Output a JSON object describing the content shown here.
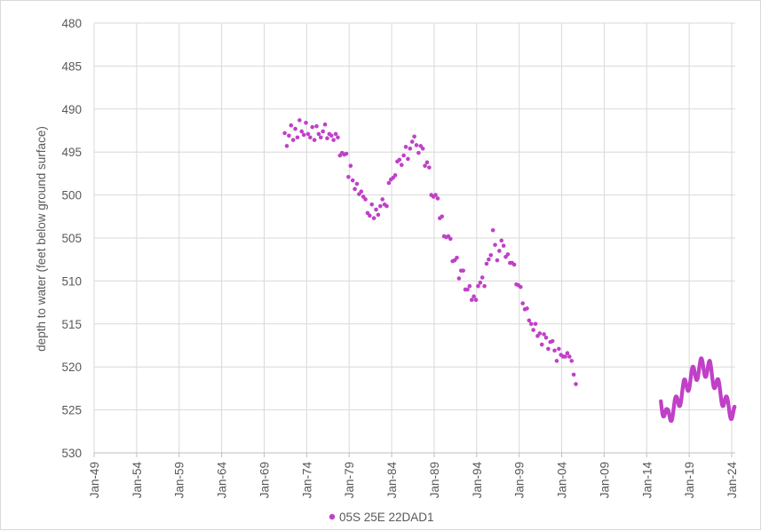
{
  "chart_data": {
    "type": "scatter",
    "title": "",
    "xlabel": "",
    "ylabel": "depth to water (feet below ground surface)",
    "y_axis_reversed": true,
    "ylim": [
      480,
      530
    ],
    "y_ticks": [
      480,
      485,
      490,
      495,
      500,
      505,
      510,
      515,
      520,
      525,
      530
    ],
    "xlim": [
      "1949-01",
      "2024-06"
    ],
    "x_tick_labels": [
      "Jan-49",
      "Jan-54",
      "Jan-59",
      "Jan-64",
      "Jan-69",
      "Jan-74",
      "Jan-79",
      "Jan-84",
      "Jan-89",
      "Jan-94",
      "Jan-99",
      "Jan-04",
      "Jan-09",
      "Jan-14",
      "Jan-19",
      "Jan-24"
    ],
    "x_ticks": [
      "1949-01",
      "1954-01",
      "1959-01",
      "1964-01",
      "1969-01",
      "1974-01",
      "1979-01",
      "1984-01",
      "1989-01",
      "1994-01",
      "1999-01",
      "2004-01",
      "2009-01",
      "2014-01",
      "2019-01",
      "2024-01"
    ],
    "grid": true,
    "legend_position": "bottom",
    "marker_color": "#c040c8",
    "series": [
      {
        "name": "05S 25E 22DAD1",
        "points": [
          [
            "1971-06",
            492.8
          ],
          [
            "1971-09",
            494.3
          ],
          [
            "1971-12",
            493.1
          ],
          [
            "1972-03",
            491.9
          ],
          [
            "1972-06",
            493.6
          ],
          [
            "1972-09",
            492.3
          ],
          [
            "1972-12",
            493.3
          ],
          [
            "1973-03",
            491.3
          ],
          [
            "1973-06",
            492.6
          ],
          [
            "1973-09",
            493.0
          ],
          [
            "1973-12",
            491.6
          ],
          [
            "1974-03",
            492.9
          ],
          [
            "1974-06",
            493.3
          ],
          [
            "1974-09",
            492.1
          ],
          [
            "1974-12",
            493.6
          ],
          [
            "1975-03",
            492.0
          ],
          [
            "1975-06",
            492.9
          ],
          [
            "1975-09",
            493.3
          ],
          [
            "1975-12",
            492.6
          ],
          [
            "1976-03",
            491.8
          ],
          [
            "1976-06",
            493.4
          ],
          [
            "1976-09",
            492.9
          ],
          [
            "1976-12",
            493.1
          ],
          [
            "1977-03",
            493.6
          ],
          [
            "1977-06",
            492.9
          ],
          [
            "1977-09",
            493.3
          ],
          [
            "1977-12",
            495.4
          ],
          [
            "1978-03",
            495.1
          ],
          [
            "1978-06",
            495.3
          ],
          [
            "1978-09",
            495.2
          ],
          [
            "1978-12",
            497.9
          ],
          [
            "1979-03",
            496.6
          ],
          [
            "1979-06",
            498.3
          ],
          [
            "1979-09",
            499.3
          ],
          [
            "1979-12",
            498.7
          ],
          [
            "1980-03",
            499.9
          ],
          [
            "1980-06",
            499.6
          ],
          [
            "1980-09",
            500.2
          ],
          [
            "1980-12",
            500.5
          ],
          [
            "1981-03",
            502.1
          ],
          [
            "1981-06",
            502.4
          ],
          [
            "1981-09",
            501.1
          ],
          [
            "1981-12",
            502.7
          ],
          [
            "1982-03",
            501.7
          ],
          [
            "1982-06",
            502.3
          ],
          [
            "1982-09",
            501.3
          ],
          [
            "1982-12",
            500.5
          ],
          [
            "1983-03",
            501.1
          ],
          [
            "1983-06",
            501.3
          ],
          [
            "1983-09",
            498.6
          ],
          [
            "1983-12",
            498.2
          ],
          [
            "1984-03",
            498.0
          ],
          [
            "1984-06",
            497.7
          ],
          [
            "1984-09",
            496.1
          ],
          [
            "1984-12",
            495.9
          ],
          [
            "1985-03",
            496.5
          ],
          [
            "1985-06",
            495.4
          ],
          [
            "1985-09",
            494.4
          ],
          [
            "1985-12",
            495.8
          ],
          [
            "1986-03",
            494.6
          ],
          [
            "1986-06",
            493.8
          ],
          [
            "1986-09",
            493.2
          ],
          [
            "1986-12",
            494.2
          ],
          [
            "1987-03",
            495.1
          ],
          [
            "1987-06",
            494.3
          ],
          [
            "1987-09",
            494.6
          ],
          [
            "1987-12",
            496.6
          ],
          [
            "1988-03",
            496.2
          ],
          [
            "1988-06",
            496.8
          ],
          [
            "1988-09",
            500.0
          ],
          [
            "1988-12",
            500.2
          ],
          [
            "1989-03",
            500.0
          ],
          [
            "1989-06",
            500.4
          ],
          [
            "1989-09",
            502.7
          ],
          [
            "1989-12",
            502.5
          ],
          [
            "1990-03",
            504.8
          ],
          [
            "1990-06",
            504.9
          ],
          [
            "1990-09",
            504.8
          ],
          [
            "1990-12",
            505.1
          ],
          [
            "1991-03",
            507.7
          ],
          [
            "1991-06",
            507.6
          ],
          [
            "1991-09",
            507.3
          ],
          [
            "1991-12",
            509.7
          ],
          [
            "1992-03",
            508.8
          ],
          [
            "1992-06",
            508.8
          ],
          [
            "1992-09",
            511.0
          ],
          [
            "1992-12",
            511.0
          ],
          [
            "1993-03",
            510.6
          ],
          [
            "1993-06",
            512.2
          ],
          [
            "1993-09",
            511.8
          ],
          [
            "1993-12",
            512.2
          ],
          [
            "1994-03",
            510.6
          ],
          [
            "1994-06",
            510.2
          ],
          [
            "1994-09",
            509.6
          ],
          [
            "1994-12",
            510.6
          ],
          [
            "1995-03",
            508.0
          ],
          [
            "1995-06",
            507.5
          ],
          [
            "1995-09",
            507.0
          ],
          [
            "1995-12",
            504.1
          ],
          [
            "1996-03",
            505.8
          ],
          [
            "1996-06",
            507.6
          ],
          [
            "1996-09",
            506.5
          ],
          [
            "1996-12",
            505.3
          ],
          [
            "1997-03",
            505.9
          ],
          [
            "1997-06",
            507.2
          ],
          [
            "1997-09",
            506.9
          ],
          [
            "1997-12",
            507.9
          ],
          [
            "1998-03",
            507.9
          ],
          [
            "1998-06",
            508.1
          ],
          [
            "1998-09",
            510.4
          ],
          [
            "1998-12",
            510.5
          ],
          [
            "1999-03",
            510.7
          ],
          [
            "1999-06",
            512.6
          ],
          [
            "1999-09",
            513.3
          ],
          [
            "1999-12",
            513.2
          ],
          [
            "2000-03",
            514.6
          ],
          [
            "2000-06",
            515.0
          ],
          [
            "2000-09",
            515.7
          ],
          [
            "2000-12",
            515.0
          ],
          [
            "2001-03",
            516.4
          ],
          [
            "2001-06",
            516.1
          ],
          [
            "2001-09",
            517.4
          ],
          [
            "2001-12",
            516.2
          ],
          [
            "2002-03",
            516.6
          ],
          [
            "2002-06",
            517.9
          ],
          [
            "2002-09",
            517.1
          ],
          [
            "2002-12",
            517.0
          ],
          [
            "2003-03",
            518.1
          ],
          [
            "2003-06",
            519.3
          ],
          [
            "2003-09",
            517.9
          ],
          [
            "2003-12",
            518.6
          ],
          [
            "2004-03",
            518.8
          ],
          [
            "2004-06",
            518.8
          ],
          [
            "2004-09",
            518.4
          ],
          [
            "2004-12",
            518.8
          ],
          [
            "2005-03",
            519.3
          ],
          [
            "2005-06",
            520.9
          ],
          [
            "2005-09",
            522.0
          ]
        ]
      }
    ],
    "dense_segment": {
      "series": "05S 25E 22DAD1",
      "start": "2015-09",
      "end": "2024-05",
      "step_months": 0.25,
      "trend": [
        [
          "2015-09",
          524.0
        ],
        [
          "2016-06",
          526.0
        ],
        [
          "2017-06",
          524.5
        ],
        [
          "2018-06",
          522.5
        ],
        [
          "2019-06",
          521.0
        ],
        [
          "2020-06",
          520.0
        ],
        [
          "2021-06",
          520.3
        ],
        [
          "2022-06",
          522.5
        ],
        [
          "2023-06",
          524.5
        ],
        [
          "2024-05",
          525.5
        ]
      ],
      "seasonal_amplitude": 1.0
    }
  },
  "legend": {
    "label": "05S 25E 22DAD1"
  }
}
